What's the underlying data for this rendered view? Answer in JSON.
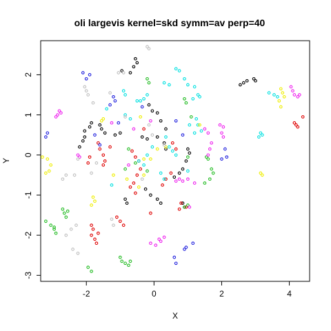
{
  "chart_data": {
    "type": "scatter",
    "title": "oli largevis kernel=skd symm=av perp=40",
    "xlabel": "X",
    "ylabel": "Y",
    "xlim": [
      -3.35,
      4.6
    ],
    "ylim": [
      -3.15,
      2.85
    ],
    "x_ticks": [
      -2,
      0,
      2,
      4
    ],
    "x_tick_labels": [
      "-2",
      "0",
      "2",
      "4"
    ],
    "y_ticks": [
      -3,
      -2,
      -1,
      0,
      1,
      2
    ],
    "y_tick_labels": [
      "-3",
      "-2",
      "-1",
      "0",
      "1",
      "2"
    ],
    "grid": false,
    "legend": "none",
    "colors": {
      "black": "#000000",
      "red": "#df0000",
      "green": "#22bb22",
      "blue": "#2020dd",
      "cyan": "#00e0e0",
      "magenta": "#ee22ee",
      "yellow": "#eeee00",
      "gray": "#c0c0c0"
    },
    "series": [
      {
        "color": "black",
        "points": [
          [
            -0.55,
            2.4
          ],
          [
            -0.5,
            2.3
          ],
          [
            -0.6,
            2.2
          ],
          [
            -0.7,
            2.05
          ],
          [
            -0.95,
            2.1
          ],
          [
            -0.15,
            1.25
          ],
          [
            -0.05,
            1.1
          ],
          [
            0.1,
            1.05
          ],
          [
            0.2,
            0.85
          ],
          [
            0.35,
            0.65
          ],
          [
            -1.6,
            0.75
          ],
          [
            -1.55,
            0.65
          ],
          [
            -1.45,
            0.55
          ],
          [
            -1.0,
            0.55
          ],
          [
            -1.15,
            0.5
          ],
          [
            -0.35,
            0.45
          ],
          [
            -0.2,
            0.4
          ],
          [
            0.1,
            0.45
          ],
          [
            0.3,
            0.3
          ],
          [
            0.35,
            0.15
          ],
          [
            1.0,
            0.15
          ],
          [
            1.05,
            0.05
          ],
          [
            0.95,
            -0.15
          ],
          [
            0.85,
            -0.35
          ],
          [
            0.75,
            -0.45
          ],
          [
            0.6,
            -0.55
          ],
          [
            -1.85,
            0.8
          ],
          [
            -1.9,
            0.7
          ],
          [
            -2.05,
            0.6
          ],
          [
            -2.05,
            0.45
          ],
          [
            -2.1,
            0.35
          ],
          [
            -2.2,
            0.2
          ],
          [
            -0.25,
            -0.85
          ],
          [
            -0.1,
            -1.0
          ],
          [
            0.1,
            -1.1
          ],
          [
            0.2,
            -1.2
          ],
          [
            -0.85,
            -1.1
          ],
          [
            -0.8,
            -1.2
          ],
          [
            0.85,
            -1.2
          ],
          [
            0.9,
            -1.3
          ],
          [
            2.55,
            1.75
          ],
          [
            2.65,
            1.8
          ],
          [
            2.75,
            1.85
          ],
          [
            2.95,
            1.9
          ],
          [
            3.0,
            1.85
          ]
        ]
      },
      {
        "color": "red",
        "points": [
          [
            -1.65,
            0.3
          ],
          [
            -1.6,
            0.15
          ],
          [
            -1.5,
            0.0
          ],
          [
            -1.45,
            -0.15
          ],
          [
            -1.5,
            -0.25
          ],
          [
            -1.3,
            0.2
          ],
          [
            -1.9,
            -0.05
          ],
          [
            -1.95,
            -0.2
          ],
          [
            -0.65,
            0.1
          ],
          [
            -0.55,
            -0.05
          ],
          [
            -0.45,
            -0.15
          ],
          [
            -0.4,
            -0.35
          ],
          [
            -0.5,
            -0.5
          ],
          [
            -0.6,
            -0.7
          ],
          [
            -0.3,
            0.65
          ],
          [
            -0.7,
            -0.8
          ],
          [
            -0.55,
            -0.95
          ],
          [
            0.55,
            0.3
          ],
          [
            0.65,
            0.15
          ],
          [
            0.5,
            -0.45
          ],
          [
            0.35,
            -0.6
          ],
          [
            0.25,
            -0.75
          ],
          [
            -1.85,
            -1.75
          ],
          [
            -1.8,
            -1.85
          ],
          [
            -1.85,
            -2.0
          ],
          [
            -1.75,
            -2.1
          ],
          [
            -1.7,
            -2.2
          ],
          [
            -1.65,
            -1.95
          ],
          [
            -1.1,
            -1.55
          ],
          [
            -1.0,
            -1.65
          ],
          [
            -0.9,
            -1.75
          ],
          [
            0.8,
            -1.2
          ],
          [
            0.75,
            -1.35
          ],
          [
            0.95,
            -1.3
          ],
          [
            -0.1,
            -1.45
          ],
          [
            4.15,
            0.8
          ],
          [
            4.2,
            0.75
          ],
          [
            4.25,
            0.7
          ],
          [
            4.4,
            0.95
          ]
        ]
      },
      {
        "color": "green",
        "points": [
          [
            -0.2,
            1.9
          ],
          [
            -0.15,
            1.8
          ],
          [
            0.9,
            1.4
          ],
          [
            0.95,
            1.3
          ],
          [
            1.1,
            0.95
          ],
          [
            1.0,
            -0.05
          ],
          [
            -0.85,
            -0.35
          ],
          [
            -0.2,
            -0.4
          ],
          [
            -0.55,
            -0.2
          ],
          [
            1.6,
            -0.1
          ],
          [
            1.55,
            -0.05
          ],
          [
            1.7,
            -0.35
          ],
          [
            1.75,
            -0.45
          ],
          [
            1.65,
            -0.6
          ],
          [
            1.5,
            -0.7
          ],
          [
            -0.75,
            0.15
          ],
          [
            -2.7,
            -1.35
          ],
          [
            -2.65,
            -1.45
          ],
          [
            -2.6,
            -1.55
          ],
          [
            -2.55,
            -1.4
          ],
          [
            -3.2,
            -1.65
          ],
          [
            -3.05,
            -1.75
          ],
          [
            -2.95,
            -1.8
          ],
          [
            -2.9,
            -1.95
          ],
          [
            -2.95,
            -1.85
          ],
          [
            -1.95,
            -2.8
          ],
          [
            -1.85,
            -2.9
          ],
          [
            -1.0,
            -2.55
          ],
          [
            -0.95,
            -2.65
          ],
          [
            -0.85,
            -2.7
          ],
          [
            -0.75,
            -2.75
          ],
          [
            -0.7,
            -2.65
          ],
          [
            0.9,
            -1.3
          ],
          [
            1.0,
            -1.25
          ]
        ]
      },
      {
        "color": "blue",
        "points": [
          [
            -2.1,
            2.05
          ],
          [
            -1.9,
            2.0
          ],
          [
            -2.0,
            1.9
          ],
          [
            -1.2,
            1.45
          ],
          [
            -1.15,
            1.35
          ],
          [
            -1.3,
            1.25
          ],
          [
            -1.05,
            0.8
          ],
          [
            -0.35,
            1.2
          ],
          [
            0.65,
            0.85
          ],
          [
            0.85,
            0.5
          ],
          [
            -1.75,
            0.5
          ],
          [
            -1.6,
            0.25
          ],
          [
            -3.15,
            0.55
          ],
          [
            -3.2,
            0.45
          ],
          [
            2.1,
            0.15
          ],
          [
            2.0,
            -0.1
          ],
          [
            2.15,
            -0.05
          ],
          [
            0.6,
            -2.55
          ],
          [
            0.65,
            -2.7
          ],
          [
            0.9,
            -2.35
          ],
          [
            0.95,
            -2.3
          ],
          [
            1.15,
            -2.2
          ]
        ]
      },
      {
        "color": "cyan",
        "points": [
          [
            0.3,
            1.8
          ],
          [
            0.45,
            1.75
          ],
          [
            0.65,
            2.15
          ],
          [
            0.75,
            2.1
          ],
          [
            0.9,
            1.9
          ],
          [
            1.0,
            1.75
          ],
          [
            1.2,
            1.7
          ],
          [
            1.3,
            1.5
          ],
          [
            1.35,
            1.45
          ],
          [
            1.15,
            1.4
          ],
          [
            -0.9,
            1.6
          ],
          [
            -0.85,
            1.5
          ],
          [
            -0.5,
            1.35
          ],
          [
            -0.4,
            1.35
          ],
          [
            -0.3,
            1.4
          ],
          [
            -0.2,
            1.5
          ],
          [
            -1.4,
            1.15
          ],
          [
            -0.85,
            1.0
          ],
          [
            -0.7,
            0.9
          ],
          [
            1.25,
            0.9
          ],
          [
            1.3,
            0.75
          ],
          [
            1.4,
            0.6
          ],
          [
            1.2,
            0.55
          ],
          [
            1.05,
            0.75
          ],
          [
            0.35,
            0.45
          ],
          [
            0.45,
            0.2
          ],
          [
            0.55,
            0.1
          ],
          [
            0.65,
            0.0
          ],
          [
            -0.05,
            0.2
          ],
          [
            -0.2,
            0.0
          ],
          [
            0.2,
            -0.45
          ],
          [
            0.3,
            -0.6
          ],
          [
            -0.45,
            -0.15
          ],
          [
            -0.3,
            -0.25
          ],
          [
            1.0,
            -0.4
          ],
          [
            -1.25,
            -0.75
          ],
          [
            3.4,
            1.55
          ],
          [
            3.55,
            1.5
          ],
          [
            3.65,
            1.45
          ],
          [
            3.15,
            0.55
          ],
          [
            3.2,
            0.5
          ],
          [
            3.1,
            0.45
          ]
        ]
      },
      {
        "color": "magenta",
        "points": [
          [
            -2.8,
            1.1
          ],
          [
            -2.85,
            1.0
          ],
          [
            -2.75,
            1.05
          ],
          [
            -2.9,
            0.95
          ],
          [
            -1.25,
            0.8
          ],
          [
            -0.1,
            0.85
          ],
          [
            -0.6,
            0.65
          ],
          [
            1.5,
            0.65
          ],
          [
            1.6,
            0.55
          ],
          [
            1.7,
            0.3
          ],
          [
            1.6,
            0.0
          ],
          [
            1.65,
            0.15
          ],
          [
            1.95,
            0.75
          ],
          [
            2.05,
            0.7
          ],
          [
            2.0,
            0.55
          ],
          [
            2.05,
            0.45
          ],
          [
            -2.2,
            -0.05
          ],
          [
            -2.25,
            0.0
          ],
          [
            -0.75,
            -0.25
          ],
          [
            0.65,
            -0.65
          ],
          [
            0.75,
            -0.6
          ],
          [
            0.85,
            -0.65
          ],
          [
            1.0,
            -0.6
          ],
          [
            1.2,
            -0.7
          ],
          [
            1.05,
            -1.3
          ],
          [
            -0.1,
            -2.2
          ],
          [
            0.05,
            -2.25
          ],
          [
            0.2,
            -2.15
          ],
          [
            0.3,
            -2.05
          ],
          [
            0.15,
            -2.1
          ],
          [
            4.05,
            1.7
          ],
          [
            4.1,
            1.6
          ],
          [
            4.15,
            1.5
          ],
          [
            4.25,
            1.45
          ],
          [
            4.3,
            1.5
          ]
        ]
      },
      {
        "color": "yellow",
        "points": [
          [
            -1.55,
            0.85
          ],
          [
            -1.5,
            0.9
          ],
          [
            -0.4,
            0.95
          ],
          [
            0.35,
            0.2
          ],
          [
            0.1,
            0.15
          ],
          [
            -0.1,
            -0.1
          ],
          [
            -0.3,
            -0.1
          ],
          [
            -1.2,
            -0.5
          ],
          [
            -0.8,
            -0.6
          ],
          [
            -0.45,
            -0.8
          ],
          [
            1.35,
            0.75
          ],
          [
            -3.3,
            -0.05
          ],
          [
            -3.15,
            -0.1
          ],
          [
            -3.05,
            -0.25
          ],
          [
            -3.1,
            -0.4
          ],
          [
            -3.2,
            -0.45
          ],
          [
            -1.8,
            -1.05
          ],
          [
            -1.75,
            -1.15
          ],
          [
            -1.85,
            -1.25
          ],
          [
            -0.3,
            -0.5
          ],
          [
            3.15,
            -0.45
          ],
          [
            3.2,
            -0.5
          ],
          [
            3.75,
            1.65
          ],
          [
            3.8,
            1.55
          ],
          [
            3.85,
            1.45
          ],
          [
            3.7,
            1.35
          ],
          [
            3.75,
            1.2
          ]
        ]
      },
      {
        "color": "gray",
        "points": [
          [
            -0.2,
            2.7
          ],
          [
            -0.15,
            2.65
          ],
          [
            -1.05,
            2.05
          ],
          [
            -0.9,
            2.05
          ],
          [
            -2.05,
            1.7
          ],
          [
            -2.0,
            1.6
          ],
          [
            -1.95,
            1.5
          ],
          [
            -1.3,
            1.55
          ],
          [
            -1.8,
            1.3
          ],
          [
            -0.85,
            0.95
          ],
          [
            -0.15,
            0.75
          ],
          [
            0.3,
            0.25
          ],
          [
            -2.25,
            -0.1
          ],
          [
            -2.6,
            -0.5
          ],
          [
            -2.7,
            -0.6
          ],
          [
            -2.35,
            -0.5
          ],
          [
            -1.7,
            -0.2
          ],
          [
            -1.85,
            -0.45
          ],
          [
            -2.6,
            -2.0
          ],
          [
            -2.45,
            -1.85
          ],
          [
            -2.3,
            -1.75
          ],
          [
            -2.4,
            -2.35
          ],
          [
            -2.25,
            -2.45
          ],
          [
            -1.25,
            -1.6
          ],
          [
            -1.2,
            -1.75
          ],
          [
            -0.05,
            0.5
          ],
          [
            -0.35,
            -0.6
          ]
        ]
      }
    ]
  }
}
